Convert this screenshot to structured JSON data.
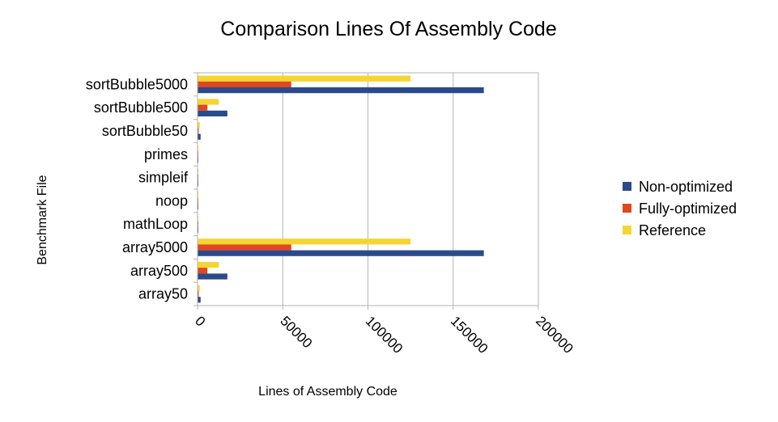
{
  "chart_data": {
    "type": "bar",
    "orientation": "horizontal",
    "title": "Comparison Lines Of Assembly Code",
    "xlabel": "Lines of Assembly Code",
    "ylabel": "Benchmark File",
    "xlim": [
      0,
      200000
    ],
    "xticks": [
      "0",
      "50000",
      "100000",
      "150000",
      "200000"
    ],
    "grid": true,
    "legend_position": "right",
    "categories": [
      "sortBubble5000",
      "sortBubble500",
      "sortBubble50",
      "primes",
      "simpleif",
      "noop",
      "mathLoop",
      "array5000",
      "array500",
      "array50"
    ],
    "series": [
      {
        "name": "Non-optimized",
        "color": "#2a4a8c",
        "values": [
          168000,
          17500,
          1800,
          300,
          150,
          50,
          200,
          168000,
          17500,
          1800
        ]
      },
      {
        "name": "Fully-optimized",
        "color": "#e0471f",
        "values": [
          55000,
          5800,
          700,
          150,
          60,
          20,
          80,
          55000,
          5800,
          700
        ]
      },
      {
        "name": "Reference",
        "color": "#f5d531",
        "values": [
          125000,
          12500,
          1300,
          200,
          80,
          20,
          120,
          125000,
          12500,
          1300
        ]
      }
    ]
  }
}
